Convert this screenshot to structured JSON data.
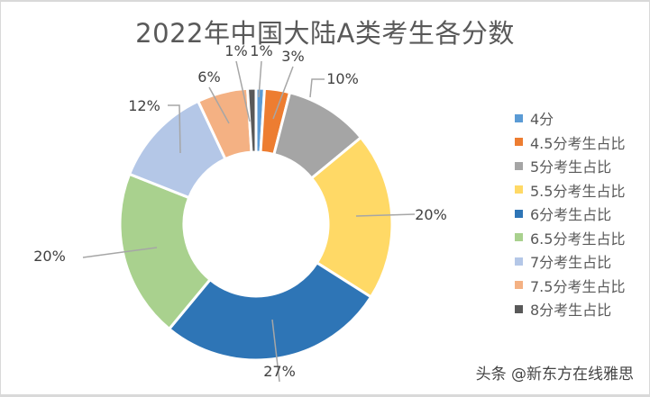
{
  "chart_data": {
    "type": "pie",
    "subtype": "donut",
    "title": "2022年中国大陆A类考生各分数",
    "categories": [
      "4分",
      "4.5分考生占比",
      "5分考生占比",
      "5.5分考生占比",
      "6分考生占比",
      "6.5分考生占比",
      "7分考生占比",
      "7.5分考生占比",
      "8分考生占比"
    ],
    "values": [
      1,
      3,
      10,
      20,
      27,
      20,
      12,
      6,
      1
    ],
    "labels": [
      "1%",
      "3%",
      "10%",
      "20%",
      "27%",
      "20%",
      "12%",
      "6%",
      "1%"
    ],
    "colors": [
      "#5b9bd5",
      "#ed7d31",
      "#a5a5a5",
      "#ffd966",
      "#2e75b6",
      "#a9d18e",
      "#b4c7e7",
      "#f4b183",
      "#595959"
    ],
    "legend_position": "right",
    "start_angle": "12 o'clock, clockwise"
  },
  "title": "2022年中国大陆A类考生各分数",
  "legend": [
    {
      "label": "4分",
      "color": "#5b9bd5"
    },
    {
      "label": "4.5分考生占比",
      "color": "#ed7d31"
    },
    {
      "label": "5分考生占比",
      "color": "#a5a5a5"
    },
    {
      "label": "5.5分考生占比",
      "color": "#ffd966"
    },
    {
      "label": "6分考生占比",
      "color": "#2e75b6"
    },
    {
      "label": "6.5分考生占比",
      "color": "#a9d18e"
    },
    {
      "label": "7分考生占比",
      "color": "#b4c7e7"
    },
    {
      "label": "7.5分考生占比",
      "color": "#f4b183"
    },
    {
      "label": "8分考生占比",
      "color": "#595959"
    }
  ],
  "watermark": "头条 @新东方在线雅思"
}
